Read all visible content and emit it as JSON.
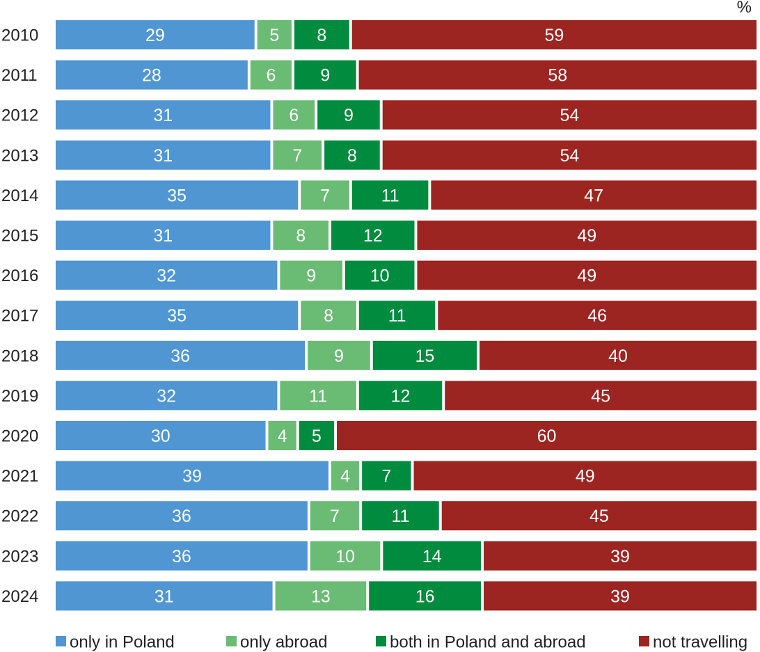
{
  "chart_data": {
    "type": "bar",
    "orientation": "horizontal",
    "stacked": true,
    "unit": "%",
    "categories": [
      "2010",
      "2011",
      "2012",
      "2013",
      "2014",
      "2015",
      "2016",
      "2017",
      "2018",
      "2019",
      "2020",
      "2021",
      "2022",
      "2023",
      "2024"
    ],
    "series": [
      {
        "name": "only in Poland",
        "color": "#4f96d2",
        "values": [
          29,
          28,
          31,
          31,
          35,
          31,
          32,
          35,
          36,
          32,
          30,
          39,
          36,
          36,
          31
        ]
      },
      {
        "name": "only abroad",
        "color": "#6abb73",
        "values": [
          5,
          6,
          6,
          7,
          7,
          8,
          9,
          8,
          9,
          11,
          4,
          4,
          7,
          10,
          13
        ]
      },
      {
        "name": "both in Poland and abroad",
        "color": "#008b3e",
        "values": [
          8,
          9,
          9,
          8,
          11,
          12,
          10,
          11,
          15,
          12,
          5,
          7,
          11,
          14,
          16
        ]
      },
      {
        "name": "not travelling",
        "color": "#9c2421",
        "values": [
          59,
          58,
          54,
          54,
          47,
          49,
          49,
          46,
          40,
          45,
          60,
          49,
          45,
          39,
          39
        ]
      }
    ],
    "legend_position": "bottom",
    "grid": false
  }
}
